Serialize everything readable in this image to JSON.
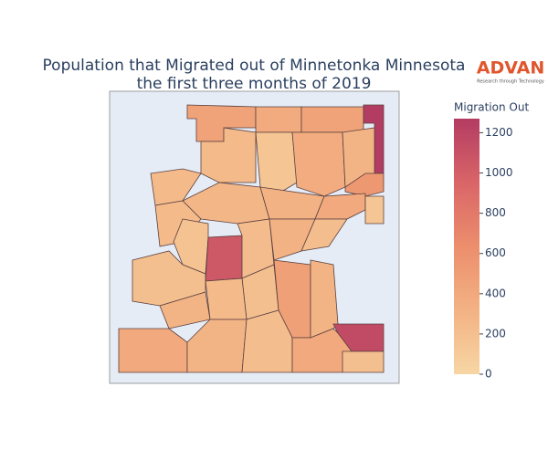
{
  "chart_data": {
    "type": "choropleth",
    "title": "Population that Migrated out of Minnetonka Minnesota",
    "subtitle": "the first three months of 2019",
    "logo": "ADVAN",
    "logo_tagline": "Research through Technology",
    "values": [
      450,
      380,
      450,
      1270,
      250,
      150,
      370,
      300,
      550,
      250,
      280,
      320,
      400,
      150,
      250,
      180,
      1050,
      230,
      320,
      220,
      200,
      200,
      480,
      300,
      1150,
      300,
      250,
      400,
      300,
      220,
      400,
      200
    ],
    "colorbar": {
      "title": "Migration Out",
      "range": [
        0,
        1270
      ],
      "ticks": [
        0,
        200,
        400,
        600,
        800,
        1000,
        1200
      ],
      "colorscale": [
        "#f7d6a4",
        "#f3b283",
        "#ec8e6c",
        "#d96568",
        "#b33c62"
      ]
    }
  }
}
